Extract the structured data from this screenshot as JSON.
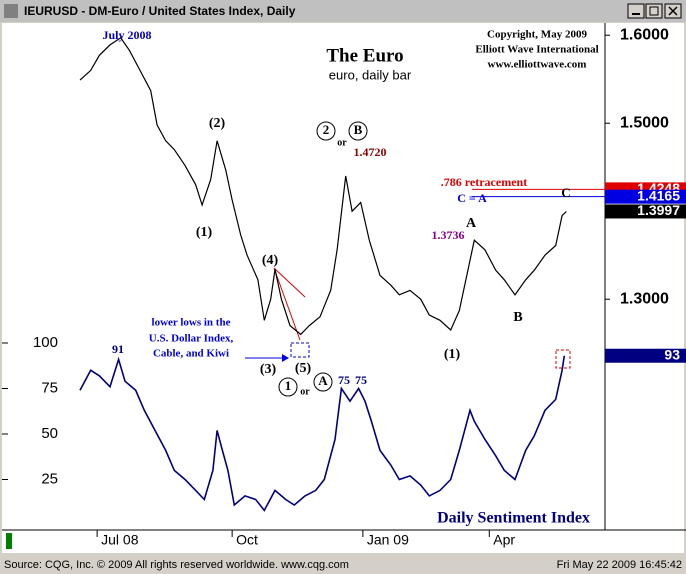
{
  "window": {
    "title": "IEURUSD - DM-Euro / United States Index, Daily"
  },
  "status_bar": {
    "source": "Source: CQG, Inc. © 2009 All rights reserved worldwide.  www.cqg.com",
    "timestamp": "Fri May 22 2009 16:45:42"
  },
  "chart_data": [
    {
      "type": "line",
      "title": "The Euro",
      "subtitle": "euro, daily bar",
      "color": "#000000",
      "x": [
        0,
        5,
        9,
        14,
        19,
        23,
        28,
        33,
        36,
        40,
        44,
        49,
        54,
        57,
        61,
        64,
        68,
        71,
        75,
        78,
        83,
        86,
        89,
        91,
        94,
        98,
        103,
        107,
        112,
        117,
        120,
        124,
        127,
        131,
        135,
        140,
        145,
        149,
        154,
        159,
        163,
        168,
        173,
        177,
        181,
        184,
        189,
        194,
        198,
        203,
        208,
        212,
        217,
        222,
        225,
        227
      ],
      "values": [
        1.549,
        1.56,
        1.577,
        1.589,
        1.597,
        1.583,
        1.56,
        1.537,
        1.498,
        1.48,
        1.47,
        1.452,
        1.43,
        1.407,
        1.436,
        1.48,
        1.447,
        1.413,
        1.373,
        1.35,
        1.322,
        1.276,
        1.3,
        1.334,
        1.3,
        1.27,
        1.26,
        1.27,
        1.28,
        1.31,
        1.356,
        1.44,
        1.4,
        1.41,
        1.367,
        1.327,
        1.316,
        1.305,
        1.31,
        1.3,
        1.282,
        1.276,
        1.265,
        1.287,
        1.333,
        1.367,
        1.356,
        1.333,
        1.322,
        1.305,
        1.322,
        1.333,
        1.35,
        1.361,
        1.395,
        1.3997
      ],
      "xlim": [
        0,
        245
      ],
      "xticks": [
        {
          "value": 8,
          "label": "Jul 08"
        },
        {
          "value": 71,
          "label": "Oct"
        },
        {
          "value": 132,
          "label": "Jan 09"
        },
        {
          "value": 191,
          "label": "Apr"
        }
      ],
      "ylim": [
        1.24,
        1.61
      ],
      "yticks": [
        {
          "value": 1.6,
          "label": "1.6000"
        },
        {
          "value": 1.5,
          "label": "1.5000"
        },
        {
          "value": 1.3,
          "label": "1.3000"
        }
      ],
      "levels": [
        {
          "label": ".786 retracement",
          "value": 1.4248,
          "color": "#e00000"
        },
        {
          "label": "C = A",
          "value": 1.4165,
          "color": "#0000e0"
        }
      ],
      "annotations": [
        "July 2008",
        "Copyright, May 2009",
        "Elliott Wave International",
        "www.elliottwave.com",
        "(2)",
        "(1)",
        "(4)",
        "(3)",
        "(5)",
        "1.4720",
        "2",
        "or",
        "B",
        "C",
        "A",
        "1.3736",
        "B",
        "(1)",
        "lower lows in the",
        "U.S. Dollar Index,",
        "Cable, and Kiwi",
        "1",
        "or",
        "A"
      ]
    },
    {
      "type": "line",
      "title": "Daily Sentiment Index",
      "color": "#000080",
      "x": [
        0,
        5,
        9,
        14,
        18,
        21,
        26,
        30,
        35,
        40,
        44,
        49,
        54,
        58,
        62,
        64,
        66,
        69,
        72,
        77,
        82,
        86,
        91,
        96,
        100,
        105,
        110,
        114,
        119,
        122,
        126,
        130,
        133,
        136,
        140,
        145,
        149,
        154,
        159,
        163,
        168,
        173,
        177,
        182,
        184,
        189,
        194,
        198,
        203,
        208,
        212,
        217,
        222,
        225,
        226
      ],
      "values": [
        74,
        85,
        82,
        76,
        91,
        79,
        74,
        63,
        52,
        41,
        30,
        25,
        19,
        14,
        30,
        52,
        43,
        30,
        11,
        16,
        14,
        8,
        19,
        14,
        11,
        16,
        19,
        25,
        47,
        75,
        68,
        75,
        68,
        57,
        41,
        33,
        25,
        27,
        22,
        16,
        19,
        25,
        41,
        63,
        57,
        47,
        38,
        30,
        25,
        41,
        49,
        63,
        69,
        85,
        93
      ],
      "xlim": [
        0,
        245
      ],
      "ylim": [
        0,
        100
      ],
      "yticks": [
        25,
        50,
        75,
        100
      ],
      "annotations": [
        "91",
        "75",
        "75"
      ]
    }
  ]
}
